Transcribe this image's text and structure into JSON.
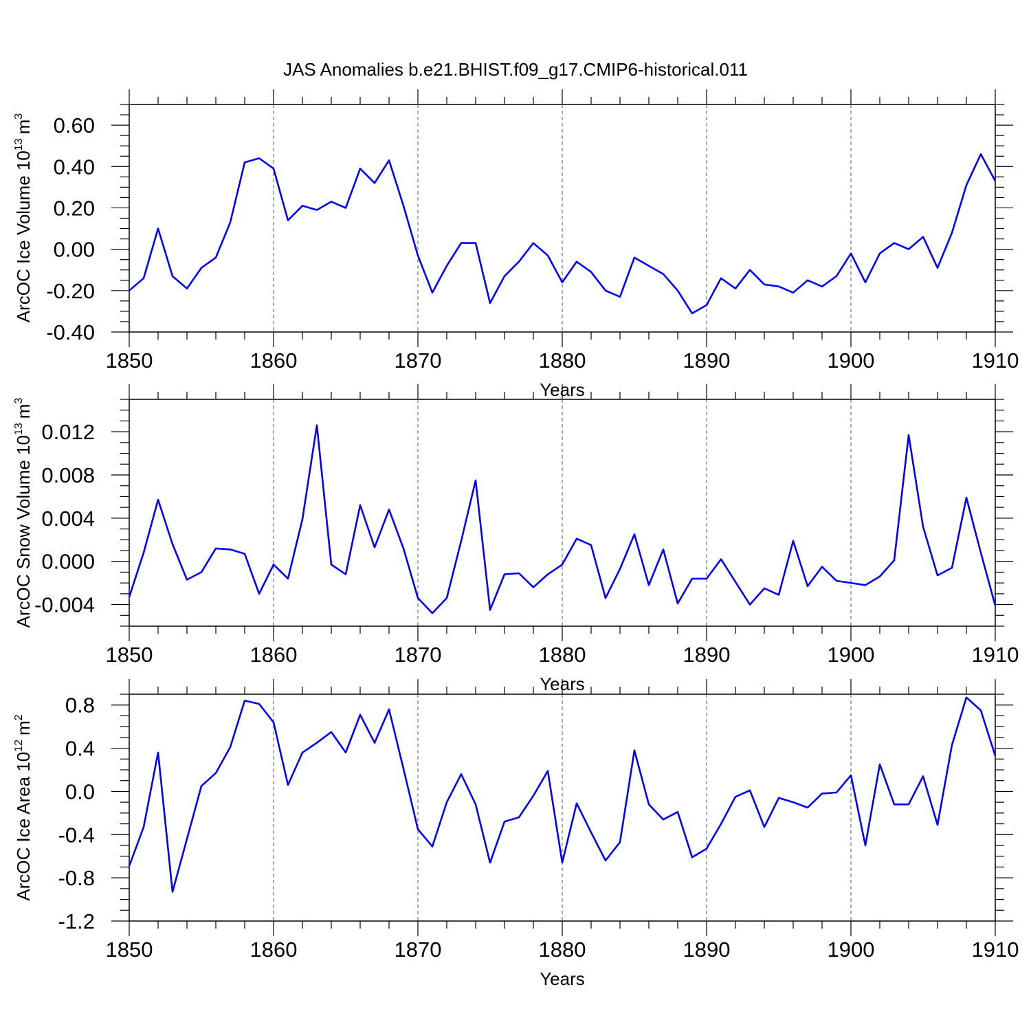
{
  "title": "JAS Anomalies b.e21.BHIST.f09_g17.CMIP6-historical.011",
  "line_color": "#0000ff",
  "chart_data": [
    {
      "type": "line",
      "xlabel": "Years",
      "ylabel": "ArcOC Ice Volume",
      "ylabel_unit_base": "10",
      "ylabel_unit_exp": "13",
      "ylabel_unit": "m",
      "ylabel_unit_unit_exp": "3",
      "xlim": [
        1850,
        1910
      ],
      "ylim": [
        -0.4,
        0.7
      ],
      "xticks": [
        "1850",
        "1860",
        "1870",
        "1880",
        "1890",
        "1900",
        "1910"
      ],
      "yticks": [
        "0.60",
        "0.40",
        "0.20",
        "0.00",
        "-0.20",
        "-0.40"
      ],
      "grid": "vertical dashed at major x ticks",
      "x": [
        1850,
        1851,
        1852,
        1853,
        1854,
        1855,
        1856,
        1857,
        1858,
        1859,
        1860,
        1861,
        1862,
        1863,
        1864,
        1865,
        1866,
        1867,
        1868,
        1869,
        1870,
        1871,
        1872,
        1873,
        1874,
        1875,
        1876,
        1877,
        1878,
        1879,
        1880,
        1881,
        1882,
        1883,
        1884,
        1885,
        1886,
        1887,
        1888,
        1889,
        1890,
        1891,
        1892,
        1893,
        1894,
        1895,
        1896,
        1897,
        1898,
        1899,
        1900,
        1901,
        1902,
        1903,
        1904,
        1905,
        1906,
        1907,
        1908,
        1909,
        1910
      ],
      "values": [
        -0.2,
        -0.14,
        0.1,
        -0.13,
        -0.19,
        -0.09,
        -0.04,
        0.13,
        0.42,
        0.44,
        0.39,
        0.14,
        0.21,
        0.19,
        0.23,
        0.2,
        0.39,
        0.32,
        0.43,
        0.21,
        -0.03,
        -0.21,
        -0.08,
        0.03,
        0.03,
        -0.26,
        -0.13,
        -0.06,
        0.03,
        -0.03,
        -0.16,
        -0.06,
        -0.11,
        -0.2,
        -0.23,
        -0.04,
        -0.08,
        -0.12,
        -0.2,
        -0.31,
        -0.27,
        -0.14,
        -0.19,
        -0.1,
        -0.17,
        -0.18,
        -0.21,
        -0.15,
        -0.18,
        -0.13,
        -0.02,
        -0.16,
        -0.02,
        0.03,
        0.0,
        0.06,
        -0.09,
        0.08,
        0.31,
        0.46,
        0.33
      ]
    },
    {
      "type": "line",
      "xlabel": "Years",
      "ylabel": "ArcOC Snow Volume",
      "ylabel_unit_base": "10",
      "ylabel_unit_exp": "13",
      "ylabel_unit": "m",
      "ylabel_unit_unit_exp": "3",
      "xlim": [
        1850,
        1910
      ],
      "ylim": [
        -0.006,
        0.015
      ],
      "xticks": [
        "1850",
        "1860",
        "1870",
        "1880",
        "1890",
        "1900",
        "1910"
      ],
      "yticks": [
        "0.012",
        "0.008",
        "0.004",
        "0.000",
        "-0.004"
      ],
      "grid": "vertical dashed at major x ticks",
      "x": [
        1850,
        1851,
        1852,
        1853,
        1854,
        1855,
        1856,
        1857,
        1858,
        1859,
        1860,
        1861,
        1862,
        1863,
        1864,
        1865,
        1866,
        1867,
        1868,
        1869,
        1870,
        1871,
        1872,
        1873,
        1874,
        1875,
        1876,
        1877,
        1878,
        1879,
        1880,
        1881,
        1882,
        1883,
        1884,
        1885,
        1886,
        1887,
        1888,
        1889,
        1890,
        1891,
        1892,
        1893,
        1894,
        1895,
        1896,
        1897,
        1898,
        1899,
        1900,
        1901,
        1902,
        1903,
        1904,
        1905,
        1906,
        1907,
        1908,
        1909,
        1910
      ],
      "values": [
        -0.0033,
        0.0008,
        0.0057,
        0.0016,
        -0.0017,
        -0.001,
        0.0012,
        0.0011,
        0.0007,
        -0.003,
        -0.0003,
        -0.0016,
        0.0039,
        0.0126,
        -0.0003,
        -0.0012,
        0.0052,
        0.0013,
        0.0048,
        0.0012,
        -0.0034,
        -0.0048,
        -0.0034,
        0.0019,
        0.0075,
        -0.0045,
        -0.0012,
        -0.0011,
        -0.0024,
        -0.0012,
        -0.0003,
        0.0021,
        0.0015,
        -0.0034,
        -0.0007,
        0.0025,
        -0.0022,
        0.0011,
        -0.0039,
        -0.0016,
        -0.0016,
        0.0002,
        -0.0019,
        -0.004,
        -0.0025,
        -0.0031,
        0.0019,
        -0.0023,
        -0.0005,
        -0.0018,
        -0.002,
        -0.0022,
        -0.0014,
        0.0001,
        0.0117,
        0.0032,
        -0.0013,
        -0.0006,
        0.0059,
        0.0008,
        -0.0041
      ]
    },
    {
      "type": "line",
      "xlabel": "Years",
      "ylabel": "ArcOC Ice Area",
      "ylabel_unit_base": "10",
      "ylabel_unit_exp": "12",
      "ylabel_unit": "m",
      "ylabel_unit_unit_exp": "2",
      "xlim": [
        1850,
        1910
      ],
      "ylim": [
        -1.2,
        0.9
      ],
      "xticks": [
        "1850",
        "1860",
        "1870",
        "1880",
        "1890",
        "1900",
        "1910"
      ],
      "yticks": [
        "0.8",
        "0.4",
        "0.0",
        "-0.4",
        "-0.8",
        "-1.2"
      ],
      "grid": "vertical dashed at major x ticks",
      "x": [
        1850,
        1851,
        1852,
        1853,
        1854,
        1855,
        1856,
        1857,
        1858,
        1859,
        1860,
        1861,
        1862,
        1863,
        1864,
        1865,
        1866,
        1867,
        1868,
        1869,
        1870,
        1871,
        1872,
        1873,
        1874,
        1875,
        1876,
        1877,
        1878,
        1879,
        1880,
        1881,
        1882,
        1883,
        1884,
        1885,
        1886,
        1887,
        1888,
        1889,
        1890,
        1891,
        1892,
        1893,
        1894,
        1895,
        1896,
        1897,
        1898,
        1899,
        1900,
        1901,
        1902,
        1903,
        1904,
        1905,
        1906,
        1907,
        1908,
        1909,
        1910
      ],
      "values": [
        -0.69,
        -0.33,
        0.36,
        -0.93,
        -0.44,
        0.05,
        0.17,
        0.41,
        0.84,
        0.81,
        0.64,
        0.06,
        0.36,
        0.45,
        0.55,
        0.36,
        0.71,
        0.45,
        0.76,
        0.21,
        -0.35,
        -0.51,
        -0.1,
        0.16,
        -0.12,
        -0.66,
        -0.28,
        -0.24,
        -0.04,
        0.19,
        -0.66,
        -0.11,
        -0.38,
        -0.64,
        -0.47,
        0.38,
        -0.12,
        -0.26,
        -0.19,
        -0.61,
        -0.53,
        -0.3,
        -0.05,
        0.01,
        -0.33,
        -0.06,
        -0.1,
        -0.15,
        -0.02,
        -0.01,
        0.15,
        -0.5,
        0.25,
        -0.12,
        -0.12,
        0.14,
        -0.31,
        0.43,
        0.87,
        0.75,
        0.33
      ]
    }
  ]
}
